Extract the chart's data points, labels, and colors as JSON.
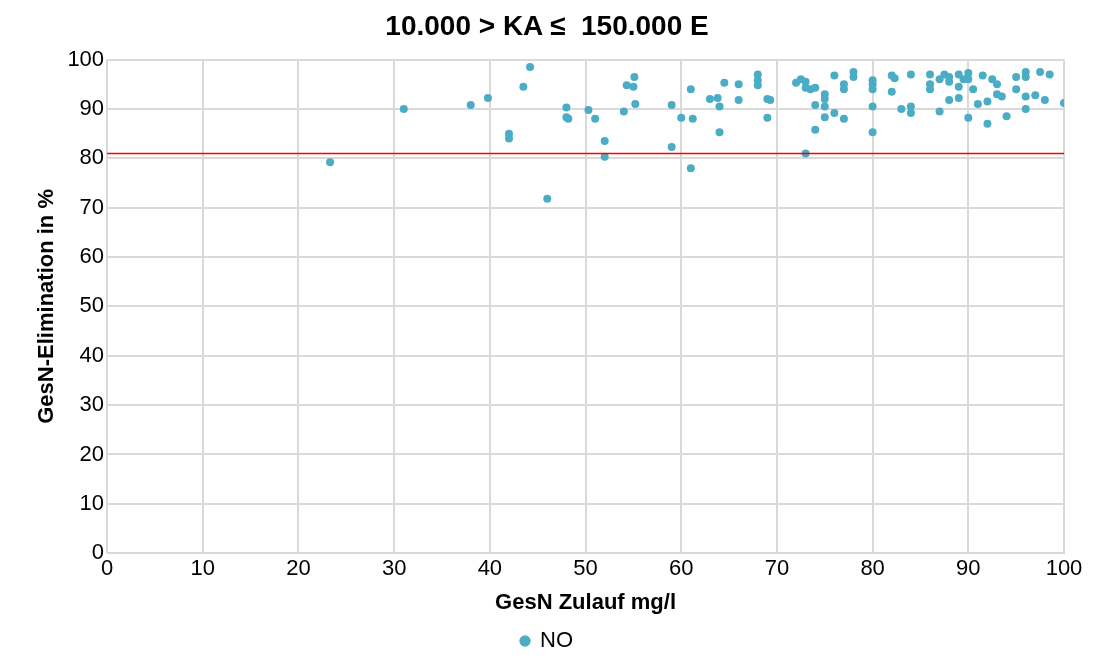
{
  "chart_data": {
    "type": "scatter",
    "title": "10.000 > KA ≤  150.000 E",
    "xlabel": "GesN Zulauf mg/l",
    "ylabel": "GesN-Elimination in %",
    "xlim": [
      0,
      100
    ],
    "xticks": [
      0,
      10,
      20,
      30,
      40,
      50,
      60,
      70,
      80,
      90,
      100
    ],
    "ylim": [
      0,
      100
    ],
    "yticks": [
      0,
      10,
      20,
      30,
      40,
      50,
      60,
      70,
      80,
      90,
      100
    ],
    "grid": true,
    "legend": "bottom",
    "marker": "circle",
    "ref_lines": [
      {
        "axis": "y",
        "value": 81,
        "color": "#ff0000"
      }
    ],
    "series": [
      {
        "name": "NO",
        "color": "#4bacc6",
        "x": [
          23.3,
          31,
          38,
          39.8,
          43.5,
          44.2,
          42,
          42,
          46,
          48,
          48,
          48.2,
          50.3,
          51,
          52,
          52,
          54,
          54.3,
          55,
          55.1,
          55.2,
          59,
          59,
          60,
          61,
          61,
          61.2,
          63,
          63.8,
          64,
          64,
          64.5,
          66,
          66,
          68,
          68,
          68,
          69,
          69.3,
          69,
          72,
          72.5,
          73,
          73,
          73,
          73.5,
          74,
          74,
          74,
          75,
          75,
          75,
          75,
          76,
          76,
          77,
          77,
          77,
          78,
          78,
          80,
          80,
          80,
          80,
          80,
          82,
          82.3,
          82,
          83,
          84,
          84,
          84,
          86,
          86,
          86,
          87,
          87,
          87.5,
          88,
          88,
          88,
          89,
          89,
          89,
          89.5,
          90,
          90,
          90,
          90.5,
          91,
          91.5,
          92,
          92,
          92.5,
          93,
          93,
          93.5,
          94,
          95,
          95,
          96,
          96,
          96,
          96,
          97,
          97.5,
          98,
          98.5,
          100
        ],
        "values": [
          79.2,
          90,
          90.8,
          92.2,
          94.5,
          98.5,
          85,
          84,
          71.8,
          90.3,
          88.3,
          88,
          89.8,
          88,
          83.5,
          80.3,
          89.5,
          94.8,
          94.5,
          96.5,
          91,
          90.8,
          82.3,
          88.2,
          78,
          94,
          88,
          92,
          92.2,
          90.5,
          85.3,
          95.3,
          91.8,
          95,
          97,
          95.8,
          94.8,
          92,
          91.8,
          88.2,
          95.3,
          96,
          95.5,
          94.3,
          81,
          94,
          90.8,
          85.8,
          94.3,
          93,
          92,
          90.5,
          88.3,
          96.8,
          89.2,
          95,
          94,
          88,
          97.5,
          96.5,
          95.8,
          95,
          94,
          90.5,
          85.3,
          96.8,
          96.2,
          93.5,
          90,
          97,
          89.2,
          90.5,
          97,
          95,
          94,
          89.5,
          96,
          97,
          96.5,
          95.5,
          91.8,
          97,
          94.5,
          92.2,
          96,
          97.3,
          96,
          88.2,
          94,
          91,
          96.8,
          91.5,
          87,
          96,
          93,
          95,
          92.5,
          88.5,
          96.5,
          94,
          97.5,
          96.5,
          92.5,
          90,
          92.8,
          97.5,
          91.8,
          97,
          91.2
        ]
      }
    ]
  }
}
